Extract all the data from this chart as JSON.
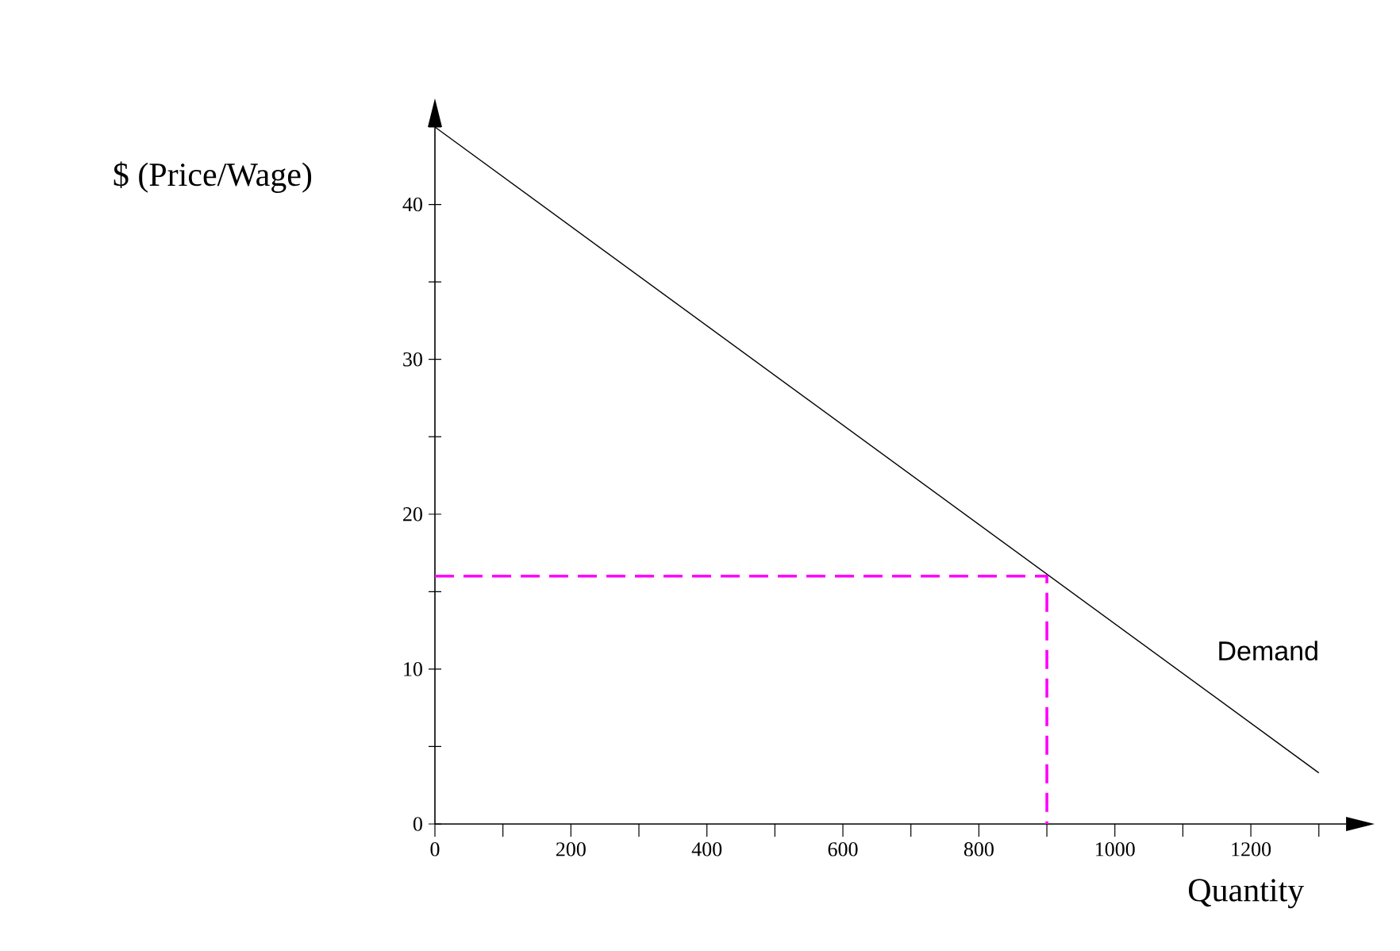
{
  "chart_data": {
    "type": "line",
    "xlabel": "Quantity",
    "ylabel": "$ (Price/Wage)",
    "xlim": [
      0,
      1340
    ],
    "ylim": [
      0,
      45
    ],
    "xticks": [
      0,
      {
        "value": 100,
        "label": null
      },
      200,
      {
        "value": 300,
        "label": null
      },
      400,
      {
        "value": 500,
        "label": null
      },
      600,
      {
        "value": 700,
        "label": null
      },
      800,
      {
        "value": 900,
        "label": null
      },
      1000,
      {
        "value": 1100,
        "label": null
      },
      1200,
      {
        "value": 1300,
        "label": null
      }
    ],
    "yticks": [
      0,
      {
        "value": 5,
        "label": null
      },
      10,
      {
        "value": 15,
        "label": null
      },
      20,
      {
        "value": 25,
        "label": null
      },
      30,
      {
        "value": 35,
        "label": null
      },
      40,
      {
        "value": 45,
        "label": null
      }
    ],
    "series": [
      {
        "name": "Demand",
        "color": "#000000",
        "x": [
          0,
          1300
        ],
        "values": [
          45,
          3.3
        ],
        "line_style": "solid"
      },
      {
        "color": "#ff00ff",
        "x": [
          0,
          900,
          900
        ],
        "values": [
          16,
          16,
          0
        ],
        "line_style": "dashed"
      }
    ]
  }
}
